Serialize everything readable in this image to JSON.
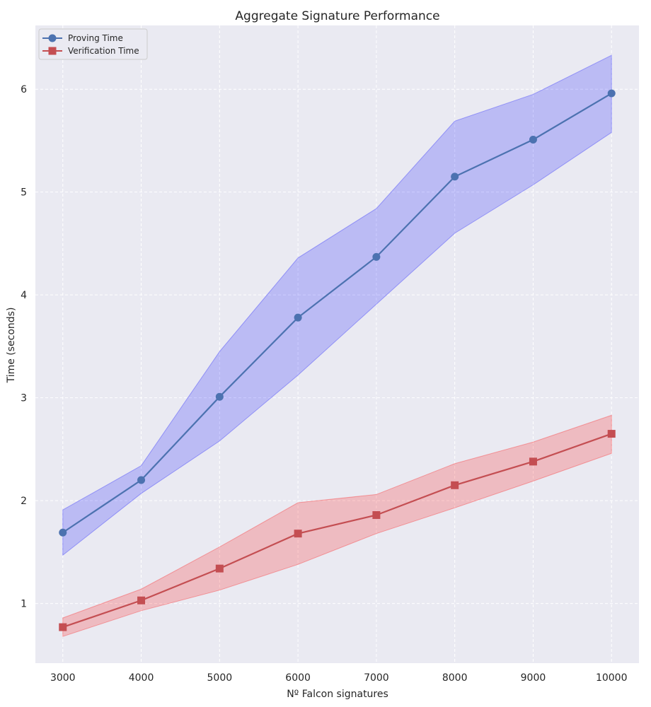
{
  "chart_data": {
    "type": "line",
    "title": "Aggregate Signature Performance",
    "xlabel": "Nº Falcon signatures",
    "ylabel": "Time (seconds)",
    "x": [
      3000,
      4000,
      5000,
      6000,
      7000,
      8000,
      9000,
      10000
    ],
    "xlim": [
      2650,
      10350
    ],
    "ylim": [
      0.42,
      6.62
    ],
    "xticks": [
      3000,
      4000,
      5000,
      6000,
      7000,
      8000,
      9000,
      10000
    ],
    "yticks": [
      1,
      2,
      3,
      4,
      5,
      6
    ],
    "grid": true,
    "legend_position": "top-left",
    "series": [
      {
        "name": "Proving Time",
        "marker": "circle",
        "line_color": "#4c72b0",
        "band_color": "#0000ff",
        "values": [
          1.69,
          2.2,
          3.01,
          3.78,
          4.37,
          5.15,
          5.51,
          5.96
        ],
        "upper": [
          1.91,
          2.34,
          3.45,
          4.36,
          4.84,
          5.69,
          5.95,
          6.33
        ],
        "lower": [
          1.47,
          2.07,
          2.58,
          3.22,
          3.91,
          4.6,
          5.07,
          5.58
        ]
      },
      {
        "name": "Verification Time",
        "marker": "square",
        "line_color": "#c44e52",
        "band_color": "#ff0000",
        "values": [
          0.77,
          1.03,
          1.34,
          1.68,
          1.86,
          2.15,
          2.38,
          2.65
        ],
        "upper": [
          0.86,
          1.14,
          1.55,
          1.98,
          2.06,
          2.36,
          2.57,
          2.83
        ],
        "lower": [
          0.68,
          0.93,
          1.13,
          1.38,
          1.68,
          1.93,
          2.19,
          2.46
        ]
      }
    ]
  }
}
